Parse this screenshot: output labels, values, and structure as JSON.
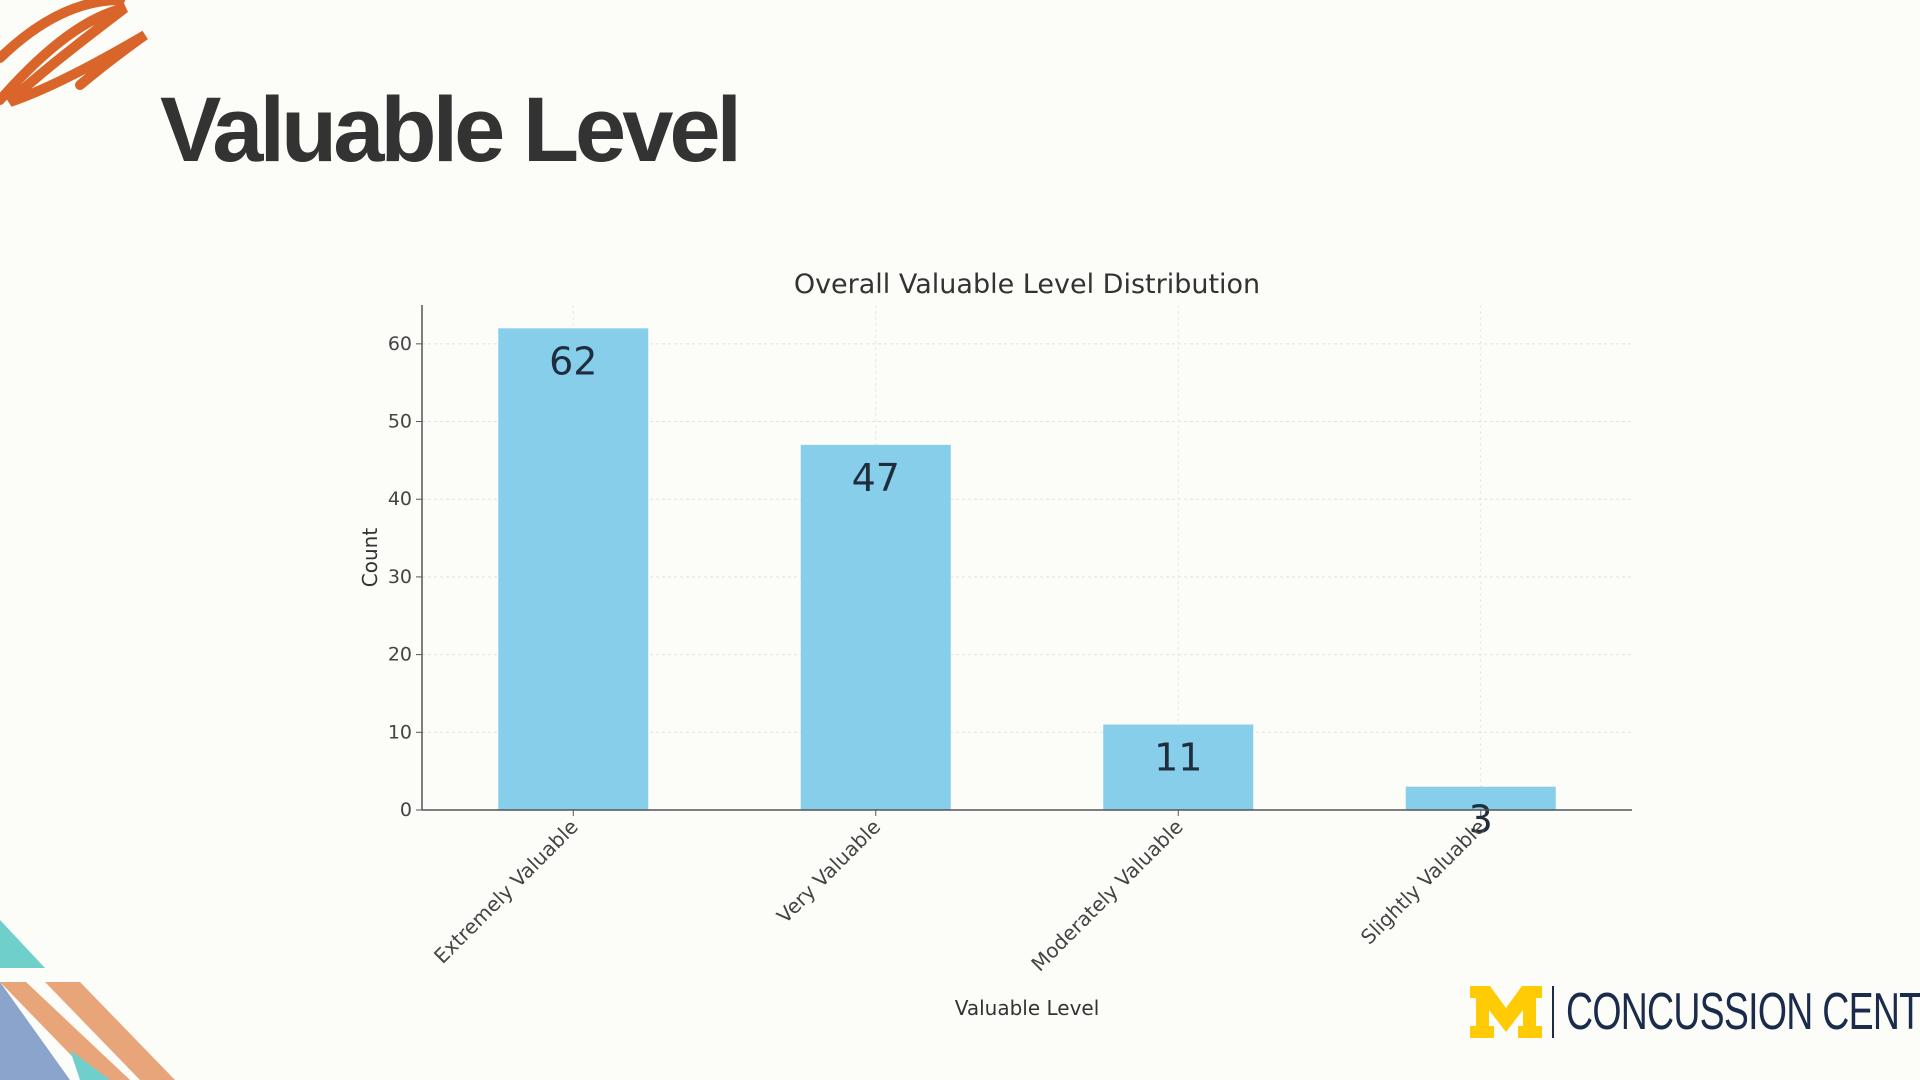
{
  "slide": {
    "title": "Valuable Level",
    "logo_text": "CONCUSSION CENTER",
    "logo_mark": "M"
  },
  "colors": {
    "bar": "#87ceeb",
    "title": "#333333",
    "orange": "#d9652a",
    "teal": "#6fcfca",
    "peach": "#e9a57a",
    "blue": "#8aa4cc",
    "maize": "#ffcb05",
    "navy": "#1b2b4b"
  },
  "chart_data": {
    "type": "bar",
    "title": "Overall Valuable Level Distribution",
    "xlabel": "Valuable Level",
    "ylabel": "Count",
    "categories": [
      "Extremely Valuable",
      "Very Valuable",
      "Moderately Valuable",
      "Slightly Valuable"
    ],
    "values": [
      62,
      47,
      11,
      3
    ],
    "data_labels": [
      "62",
      "47",
      "11",
      "3"
    ],
    "ylim": [
      0,
      65
    ],
    "yticks": [
      0,
      10,
      20,
      30,
      40,
      50,
      60
    ],
    "grid": true,
    "legend": "none"
  }
}
